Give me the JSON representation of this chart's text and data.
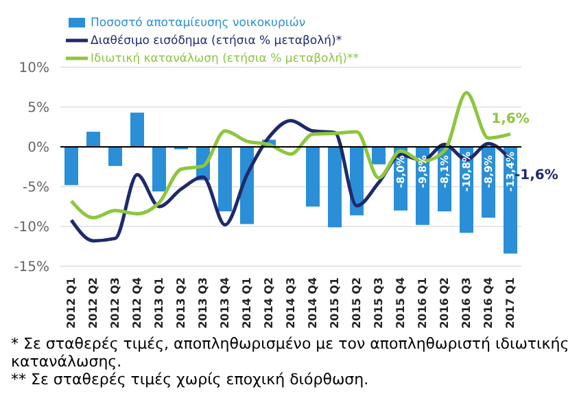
{
  "chart_data": {
    "type": "bar",
    "categories": [
      "2012 Q1",
      "2012 Q2",
      "2012 Q3",
      "2012 Q4",
      "2013 Q1",
      "2013 Q2",
      "2013 Q3",
      "2013 Q4",
      "2014 Q1",
      "2014 Q2",
      "2014 Q3",
      "2014 Q4",
      "2015 Q1",
      "2015 Q2",
      "2015 Q3",
      "2015 Q4",
      "2016 Q1",
      "2016 Q2",
      "2016 Q3",
      "2016 Q4",
      "2017 Q1"
    ],
    "series": [
      {
        "name": "Ποσοστό αποταμίευσης νοικοκυριών",
        "color": "#2a8fd6",
        "values": [
          -4.8,
          1.9,
          -2.4,
          4.3,
          -5.6,
          -0.3,
          -4.2,
          -8.1,
          -9.7,
          0.9,
          0,
          -7.5,
          -10.1,
          -8.6,
          -2.2,
          -8.0,
          -9.8,
          -8.1,
          -10.8,
          -8.9,
          -13.4
        ],
        "value_labels": [
          null,
          null,
          null,
          null,
          null,
          null,
          null,
          null,
          null,
          null,
          null,
          null,
          null,
          null,
          null,
          "-8,0%",
          "-9,8%",
          "-8,1%",
          "-10,8%",
          "-8,9%",
          "-13,4%"
        ]
      },
      {
        "name": "Διαθέσιμο εισόδημα (ετήσια % μεταβολή)*",
        "type": "line",
        "color": "#1f2a6b",
        "values": [
          -9.2,
          -11.8,
          -11.5,
          -3.5,
          -7.5,
          -5.3,
          -3.8,
          -9.8,
          -3.5,
          1.2,
          3.3,
          2.0,
          1.8,
          -7.4,
          -4.5,
          -1.0,
          -1.7,
          0.3,
          -1.6,
          0.4,
          -1.6
        ],
        "value_labels": [
          null,
          null,
          null,
          null,
          null,
          null,
          null,
          null,
          null,
          null,
          null,
          null,
          null,
          null,
          null,
          null,
          null,
          null,
          null,
          null,
          "-1,6%"
        ]
      },
      {
        "name": "Ιδιωτική κατανάλωση (ετήσια % μεταβολή)**",
        "type": "line",
        "color": "#8dc63f",
        "values": [
          -6.8,
          -8.9,
          -8.0,
          -8.4,
          -7.0,
          -2.8,
          -2.4,
          2.0,
          0.7,
          0.3,
          -0.9,
          1.6,
          1.7,
          1.9,
          -3.9,
          -0.5,
          -1.8,
          -0.5,
          6.8,
          1.1,
          1.6
        ],
        "value_labels": [
          null,
          null,
          null,
          null,
          null,
          null,
          null,
          null,
          null,
          null,
          null,
          null,
          null,
          null,
          null,
          null,
          null,
          null,
          null,
          null,
          "1,6%"
        ]
      }
    ],
    "ylim": [
      -15,
      10
    ],
    "yticks": [
      {
        "value": -15,
        "label": "-15%"
      },
      {
        "value": -10,
        "label": "-10%"
      },
      {
        "value": -5,
        "label": "-5%"
      },
      {
        "value": 0,
        "label": "0%"
      },
      {
        "value": 5,
        "label": "5%"
      },
      {
        "value": 10,
        "label": "10%"
      }
    ],
    "grid": "y",
    "legend": "top",
    "marker": "none",
    "line_style": "solid",
    "ref_lines": [
      {
        "axis": "y",
        "value": 0,
        "color": "#000000"
      }
    ],
    "annotations": [
      "* Σε σταθερές τιμές, αποπληθωρισμένο με τον αποπληθωριστή ιδιωτικής κατανάλωσης.",
      "** Σε σταθερές τιμές χωρίς εποχική διόρθωση."
    ]
  }
}
